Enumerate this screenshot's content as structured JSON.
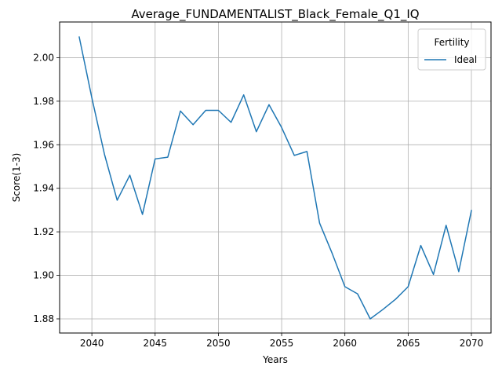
{
  "chart_data": {
    "type": "line",
    "title": "Average_FUNDAMENTALIST_Black_Female_Q1_IQ",
    "xlabel": "Years",
    "ylabel": "Score(1-3)",
    "xlim": [
      2037.45,
      2071.55
    ],
    "ylim": [
      1.8735,
      2.0164
    ],
    "xticks": [
      2040,
      2045,
      2050,
      2055,
      2060,
      2065,
      2070
    ],
    "xtick_labels": [
      "2040",
      "2045",
      "2050",
      "2055",
      "2060",
      "2065",
      "2070"
    ],
    "yticks": [
      1.88,
      1.9,
      1.92,
      1.94,
      1.96,
      1.98,
      2.0
    ],
    "ytick_labels": [
      "1.88",
      "1.90",
      "1.92",
      "1.94",
      "1.96",
      "1.98",
      "2.00"
    ],
    "grid": true,
    "legend": {
      "title": "Fertility",
      "placement": "top-right"
    },
    "series": [
      {
        "name": "Ideal",
        "color": "#1f77b4",
        "x": [
          2039,
          2040,
          2041,
          2042,
          2043,
          2044,
          2045,
          2046,
          2047,
          2048,
          2049,
          2050,
          2051,
          2052,
          2053,
          2054,
          2055,
          2056,
          2057,
          2058,
          2059,
          2060,
          2061,
          2062,
          2063,
          2064,
          2065,
          2066,
          2067,
          2068,
          2069,
          2070
        ],
        "y": [
          2.0095,
          1.9815,
          1.9555,
          1.9345,
          1.946,
          1.928,
          1.9535,
          1.9543,
          1.9755,
          1.9692,
          1.9758,
          1.9758,
          1.9703,
          1.9829,
          1.966,
          1.9784,
          1.9679,
          1.9551,
          1.9569,
          1.924,
          1.91,
          1.8948,
          1.8915,
          1.88,
          1.8843,
          1.889,
          1.8948,
          1.9137,
          1.9004,
          1.923,
          1.9017,
          1.9298
        ]
      }
    ]
  }
}
